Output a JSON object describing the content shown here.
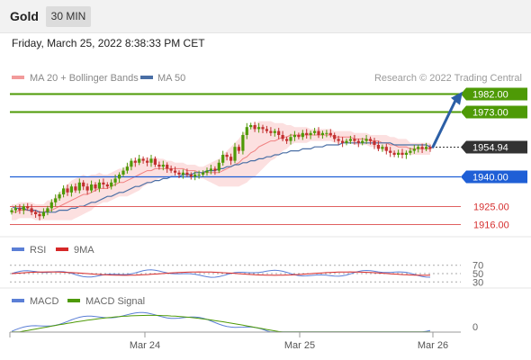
{
  "header": {
    "instrument": "Gold",
    "period": "30 MIN",
    "timestamp": "Friday, March 25, 2022 8:38:33 PM CET"
  },
  "legend": {
    "bollinger_label": "MA 20 + Bollinger Bands",
    "ma50_label": "MA 50",
    "copyright": "Research © 2022 Trading Central"
  },
  "colors": {
    "resistance": "#4e9a06",
    "support": "#1f5fd6",
    "minor_support": "#e06060",
    "minor_support_text": "#d63030",
    "current": "#333333",
    "candle_up": "#4e9a06",
    "candle_down": "#c23030",
    "bollinger_fill": "#fbd5d5",
    "ma20": "#f08080",
    "ma50": "#4a6fa5",
    "rsi": "#5b7fd6",
    "rsi_ma": "#d62828",
    "macd": "#5b7fd6",
    "macd_signal": "#4e9a06",
    "arrow": "#2c5fa6"
  },
  "chart_data": [
    {
      "type": "candlestick",
      "title": "",
      "x_ticks": [
        "Mar 24",
        "Mar 25",
        "Mar 26"
      ],
      "ylim": [
        1911,
        1986
      ],
      "levels": [
        {
          "label": "1982.00",
          "value": 1982.0,
          "kind": "resistance"
        },
        {
          "label": "1973.00",
          "value": 1973.0,
          "kind": "resistance"
        },
        {
          "label": "1954.94",
          "value": 1954.94,
          "kind": "current"
        },
        {
          "label": "1940.00",
          "value": 1940.0,
          "kind": "support"
        },
        {
          "label": "1925.00",
          "value": 1925.0,
          "kind": "minor_support"
        },
        {
          "label": "1916.00",
          "value": 1916.0,
          "kind": "minor_support"
        }
      ],
      "closes": [
        1923,
        1924,
        1923,
        1925,
        1924,
        1922,
        1921,
        1920,
        1922,
        1924,
        1927,
        1929,
        1931,
        1934,
        1932,
        1935,
        1933,
        1937,
        1935,
        1933,
        1936,
        1934,
        1937,
        1936,
        1935,
        1937,
        1939,
        1941,
        1943,
        1945,
        1948,
        1947,
        1949,
        1948,
        1947,
        1949,
        1946,
        1945,
        1946,
        1944,
        1943,
        1942,
        1941,
        1942,
        1941,
        1940,
        1941,
        1941,
        1942,
        1943,
        1944,
        1943,
        1947,
        1951,
        1950,
        1948,
        1955,
        1953,
        1961,
        1965,
        1966,
        1964,
        1965,
        1964,
        1963,
        1962,
        1963,
        1961,
        1959,
        1958,
        1960,
        1961,
        1960,
        1962,
        1961,
        1962,
        1963,
        1961,
        1962,
        1962,
        1961,
        1959,
        1958,
        1957,
        1958,
        1959,
        1958,
        1957,
        1958,
        1959,
        1958,
        1956,
        1954,
        1955,
        1953,
        1952,
        1951,
        1952,
        1951,
        1952,
        1953,
        1954,
        1955,
        1954,
        1955,
        1954
      ],
      "ma20": [
        1922,
        1922,
        1923,
        1923,
        1923,
        1923,
        1922,
        1922,
        1922,
        1923,
        1923,
        1924,
        1925,
        1926,
        1927,
        1928,
        1929,
        1930,
        1931,
        1931,
        1932,
        1933,
        1934,
        1934,
        1934,
        1935,
        1936,
        1937,
        1937,
        1938,
        1939,
        1940,
        1941,
        1942,
        1943,
        1943,
        1944,
        1944,
        1944,
        1944,
        1944,
        1944,
        1944,
        1944,
        1943,
        1943,
        1943,
        1942,
        1942,
        1942,
        1942,
        1942,
        1942,
        1943,
        1944,
        1945,
        1946,
        1947,
        1949,
        1950,
        1952,
        1953,
        1955,
        1956,
        1957,
        1958,
        1958,
        1959,
        1960,
        1960,
        1961,
        1961,
        1961,
        1961,
        1961,
        1961,
        1961,
        1961,
        1961,
        1961,
        1961,
        1960,
        1960,
        1960,
        1960,
        1960,
        1959,
        1959,
        1959,
        1959,
        1958,
        1958,
        1958,
        1957,
        1957,
        1956,
        1956,
        1955,
        1955,
        1955,
        1954,
        1954,
        1954,
        1954,
        1954,
        1954
      ],
      "ma50": [
        1925,
        1924,
        1924,
        1924,
        1923,
        1923,
        1923,
        1922,
        1922,
        1922,
        1922,
        1922,
        1923,
        1923,
        1923,
        1924,
        1924,
        1925,
        1925,
        1926,
        1927,
        1927,
        1928,
        1929,
        1930,
        1930,
        1931,
        1932,
        1932,
        1933,
        1934,
        1935,
        1935,
        1936,
        1937,
        1937,
        1938,
        1938,
        1939,
        1939,
        1940,
        1940,
        1940,
        1941,
        1941,
        1941,
        1942,
        1942,
        1942,
        1943,
        1943,
        1943,
        1944,
        1944,
        1945,
        1945,
        1946,
        1946,
        1947,
        1947,
        1948,
        1948,
        1949,
        1949,
        1950,
        1950,
        1951,
        1951,
        1952,
        1952,
        1953,
        1953,
        1953,
        1954,
        1954,
        1954,
        1955,
        1955,
        1955,
        1956,
        1956,
        1956,
        1956,
        1957,
        1957,
        1957,
        1957,
        1957,
        1957,
        1957,
        1957,
        1957,
        1957,
        1957,
        1957,
        1957,
        1956,
        1956,
        1956,
        1956,
        1956,
        1956,
        1956,
        1956,
        1956,
        1955
      ],
      "band_width": [
        4,
        4,
        4,
        4,
        4,
        4,
        4,
        4,
        4,
        5,
        5,
        6,
        7,
        8,
        9,
        10,
        10,
        10,
        10,
        9,
        9,
        8,
        8,
        7,
        7,
        7,
        7,
        7,
        7,
        8,
        8,
        8,
        8,
        7,
        7,
        6,
        6,
        5,
        5,
        4,
        4,
        3,
        3,
        3,
        3,
        3,
        3,
        3,
        3,
        4,
        5,
        6,
        7,
        8,
        9,
        10,
        11,
        12,
        13,
        13,
        13,
        13,
        13,
        12,
        11,
        10,
        9,
        8,
        7,
        6,
        5,
        4,
        4,
        4,
        4,
        3,
        3,
        3,
        3,
        3,
        3,
        3,
        3,
        3,
        3,
        3,
        3,
        3,
        3,
        3,
        3,
        3,
        3,
        4,
        4,
        4,
        4,
        4,
        4,
        4,
        3,
        3,
        3,
        3,
        3,
        3
      ],
      "projection": {
        "from": 1954.94,
        "to": 1982.0,
        "direction": "up"
      }
    },
    {
      "type": "line",
      "title": "",
      "series": [
        {
          "name": "RSI"
        },
        {
          "name": "9MA"
        }
      ],
      "y_ticks": [
        70,
        50,
        30
      ],
      "ylim": [
        20,
        80
      ]
    },
    {
      "type": "line",
      "title": "",
      "series": [
        {
          "name": "MACD"
        },
        {
          "name": "MACD Signal"
        }
      ],
      "y_ticks": [
        0
      ]
    }
  ]
}
